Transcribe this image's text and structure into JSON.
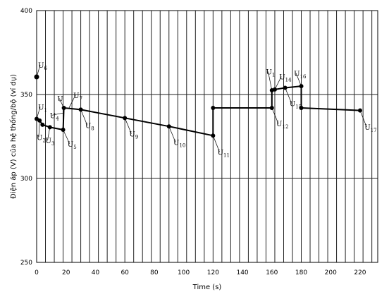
{
  "chart_data": {
    "type": "line",
    "xlabel": "Time (s)",
    "ylabel": "Điện áp (V) của hệ thống/bộ (ví dụ)",
    "xlim": [
      0,
      232
    ],
    "ylim": [
      250,
      400
    ],
    "x_ticks": [
      0,
      20,
      40,
      60,
      80,
      100,
      120,
      140,
      160,
      180,
      200,
      220
    ],
    "x_tick_labels": [
      "0",
      "20",
      "40",
      "60",
      "80",
      "100",
      "120",
      "140",
      "160",
      "180",
      "200",
      "220"
    ],
    "y_ticks": [
      250,
      300,
      350,
      400
    ],
    "y_tick_labels": [
      "250",
      "300",
      "350",
      "400"
    ],
    "vertical_grid_step": 6,
    "horizontal_grid": [
      300,
      350
    ],
    "grid": true,
    "series": [
      {
        "points": [
          {
            "x": 0,
            "y": 335.5
          },
          {
            "x": 2,
            "y": 334.5
          },
          {
            "x": 4,
            "y": 332
          },
          {
            "x": 9,
            "y": 330.5
          },
          {
            "x": 18,
            "y": 329
          },
          {
            "x": 18.5,
            "y": 342
          },
          {
            "x": 30,
            "y": 341
          },
          {
            "x": 60,
            "y": 336
          },
          {
            "x": 90,
            "y": 331
          },
          {
            "x": 120,
            "y": 325.5
          },
          {
            "x": 120,
            "y": 342
          },
          {
            "x": 160,
            "y": 342
          },
          {
            "x": 160,
            "y": 352.5
          },
          {
            "x": 162,
            "y": 353
          },
          {
            "x": 169,
            "y": 354
          },
          {
            "x": 180,
            "y": 355
          },
          {
            "x": 180,
            "y": 342
          },
          {
            "x": 220,
            "y": 340.5
          }
        ]
      }
    ],
    "standalone_points": [
      {
        "x": 0,
        "y": 360.5
      }
    ],
    "annotations": [
      {
        "letter": "U",
        "sub": "6",
        "x": 0,
        "y": 360.5,
        "tx": 1,
        "ty": 366
      },
      {
        "letter": "U",
        "sub": "1",
        "x": 0,
        "y": 335.5,
        "tx": 1,
        "ty": 341
      },
      {
        "letter": "U",
        "sub": "2",
        "x": 2,
        "y": 334.5,
        "tx": 0,
        "ty": 323
      },
      {
        "letter": "U",
        "sub": "3",
        "x": 9,
        "y": 330.5,
        "tx": 6,
        "ty": 321
      },
      {
        "letter": "U",
        "sub": "4",
        "x": 18,
        "y": 339,
        "tx": 9,
        "ty": 336
      },
      {
        "letter": "U",
        "sub": "",
        "x": 18.5,
        "y": 342,
        "tx": 14,
        "ty": 346
      },
      {
        "letter": "U",
        "sub": "7",
        "x": 22,
        "y": 342,
        "tx": 25,
        "ty": 348
      },
      {
        "letter": "U",
        "sub": "5",
        "x": 18,
        "y": 329,
        "tx": 21,
        "ty": 319
      },
      {
        "letter": "U",
        "sub": "8",
        "x": 30,
        "y": 341,
        "tx": 33,
        "ty": 330
      },
      {
        "letter": "U",
        "sub": "9",
        "x": 60,
        "y": 336,
        "tx": 63,
        "ty": 325
      },
      {
        "letter": "U",
        "sub": "10",
        "x": 90,
        "y": 331,
        "tx": 93,
        "ty": 320
      },
      {
        "letter": "U",
        "sub": "11",
        "x": 120,
        "y": 325.5,
        "tx": 123,
        "ty": 314
      },
      {
        "letter": "U",
        "sub": "1",
        "x": 160,
        "y": 352.5,
        "tx": 156,
        "ty": 362
      },
      {
        "letter": "U",
        "sub": "14",
        "x": 162,
        "y": 353,
        "tx": 165,
        "ty": 359
      },
      {
        "letter": "U",
        "sub": "16",
        "x": 180,
        "y": 355,
        "tx": 175,
        "ty": 361
      },
      {
        "letter": "U",
        "sub": "15",
        "x": 169,
        "y": 354,
        "tx": 172,
        "ty": 343
      },
      {
        "letter": "U",
        "sub": "12",
        "x": 160,
        "y": 342,
        "tx": 163,
        "ty": 331
      },
      {
        "letter": "U",
        "sub": "17",
        "x": 220,
        "y": 340.5,
        "tx": 223,
        "ty": 329
      }
    ]
  }
}
